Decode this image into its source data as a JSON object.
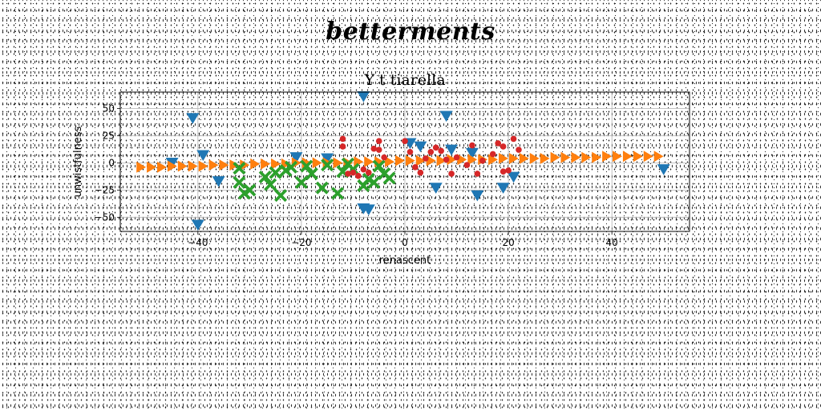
{
  "suptitle": "betterments",
  "chart_data": {
    "type": "scatter",
    "title": "Y t tiarella",
    "xlabel": "renascent",
    "ylabel": "unwistfulness",
    "xlim": [
      -55,
      55
    ],
    "ylim": [
      -63,
      65
    ],
    "xticks": [
      -40,
      -20,
      0,
      20,
      40
    ],
    "xtick_labels": [
      "−40",
      "−20",
      "0",
      "20",
      "40"
    ],
    "yticks": [
      -50,
      -25,
      0,
      25,
      50
    ],
    "ytick_labels": [
      "−50",
      "−25",
      "0",
      "25",
      "50"
    ],
    "grid": true,
    "series": [
      {
        "marker": "triangle-down",
        "color": "#1f77b4",
        "points": [
          [
            -41,
            41
          ],
          [
            -40,
            -57
          ],
          [
            -39,
            7
          ],
          [
            -45,
            0
          ],
          [
            -36,
            -17
          ],
          [
            -21,
            5
          ],
          [
            -15,
            4
          ],
          [
            -8,
            61
          ],
          [
            -8,
            -42
          ],
          [
            -7,
            -43
          ],
          [
            1,
            18
          ],
          [
            3,
            15
          ],
          [
            6,
            -23
          ],
          [
            8,
            43
          ],
          [
            9,
            12
          ],
          [
            13,
            9
          ],
          [
            14,
            -30
          ],
          [
            19,
            -23
          ],
          [
            21,
            -13
          ],
          [
            50,
            -6
          ]
        ]
      },
      {
        "marker": "triangle-right",
        "color": "#ff7f0e",
        "points": [
          [
            -51,
            -4
          ],
          [
            -49,
            -4
          ],
          [
            -47,
            -4
          ],
          [
            -45,
            -3
          ],
          [
            -43,
            -3
          ],
          [
            -41,
            -3
          ],
          [
            -39,
            -3
          ],
          [
            -37,
            -2
          ],
          [
            -35,
            -2
          ],
          [
            -33,
            -2
          ],
          [
            -31,
            -2
          ],
          [
            -29,
            -1
          ],
          [
            -27,
            -1
          ],
          [
            -25,
            -1
          ],
          [
            -23,
            -1
          ],
          [
            -21,
            0
          ],
          [
            -19,
            0
          ],
          [
            -17,
            0
          ],
          [
            -15,
            0
          ],
          [
            -13,
            0
          ],
          [
            -11,
            0
          ],
          [
            -9,
            1
          ],
          [
            -7,
            1
          ],
          [
            -5,
            1
          ],
          [
            -3,
            1
          ],
          [
            -1,
            2
          ],
          [
            1,
            2
          ],
          [
            3,
            2
          ],
          [
            5,
            2
          ],
          [
            7,
            2
          ],
          [
            9,
            3
          ],
          [
            11,
            3
          ],
          [
            13,
            3
          ],
          [
            15,
            3
          ],
          [
            17,
            3
          ],
          [
            19,
            4
          ],
          [
            21,
            4
          ],
          [
            23,
            4
          ],
          [
            25,
            4
          ],
          [
            27,
            4
          ],
          [
            29,
            5
          ],
          [
            31,
            5
          ],
          [
            33,
            5
          ],
          [
            35,
            5
          ],
          [
            37,
            5
          ],
          [
            39,
            6
          ],
          [
            41,
            6
          ],
          [
            43,
            6
          ],
          [
            45,
            6
          ],
          [
            47,
            6
          ],
          [
            49,
            6
          ]
        ]
      },
      {
        "marker": "x-filled",
        "color": "#2ca02c",
        "points": [
          [
            -32,
            -5
          ],
          [
            -32,
            -18
          ],
          [
            -31,
            -28
          ],
          [
            -30,
            -25
          ],
          [
            -27,
            -13
          ],
          [
            -26,
            -20
          ],
          [
            -25,
            -9
          ],
          [
            -24,
            -30
          ],
          [
            -23,
            -7
          ],
          [
            -22,
            -4
          ],
          [
            -20,
            -18
          ],
          [
            -19,
            -3
          ],
          [
            -18,
            -10
          ],
          [
            -16,
            -23
          ],
          [
            -15,
            -2
          ],
          [
            -13,
            -28
          ],
          [
            -12,
            -8
          ],
          [
            -11,
            -1
          ],
          [
            -10,
            -6
          ],
          [
            -8,
            -21
          ],
          [
            -7,
            -15
          ],
          [
            -6,
            -18
          ],
          [
            -5,
            -3
          ],
          [
            -4,
            -10
          ],
          [
            -3,
            -14
          ]
        ]
      },
      {
        "marker": "circle",
        "color": "#d62728",
        "points": [
          [
            -12,
            22
          ],
          [
            -12,
            15
          ],
          [
            -11,
            -10
          ],
          [
            -10,
            -9
          ],
          [
            -9,
            -12
          ],
          [
            -8,
            -6
          ],
          [
            -7,
            -9
          ],
          [
            -6,
            13
          ],
          [
            -5,
            12
          ],
          [
            -5,
            20
          ],
          [
            -4,
            5
          ],
          [
            0,
            20
          ],
          [
            1,
            10
          ],
          [
            2,
            -4
          ],
          [
            3,
            -9
          ],
          [
            4,
            4
          ],
          [
            5,
            10
          ],
          [
            6,
            14
          ],
          [
            7,
            11
          ],
          [
            8,
            3
          ],
          [
            9,
            -10
          ],
          [
            10,
            5
          ],
          [
            12,
            -2
          ],
          [
            13,
            16
          ],
          [
            14,
            -10
          ],
          [
            15,
            2
          ],
          [
            17,
            8
          ],
          [
            18,
            18
          ],
          [
            19,
            -8
          ],
          [
            19,
            15
          ],
          [
            20,
            -7
          ],
          [
            21,
            22
          ],
          [
            22,
            12
          ]
        ]
      }
    ]
  }
}
